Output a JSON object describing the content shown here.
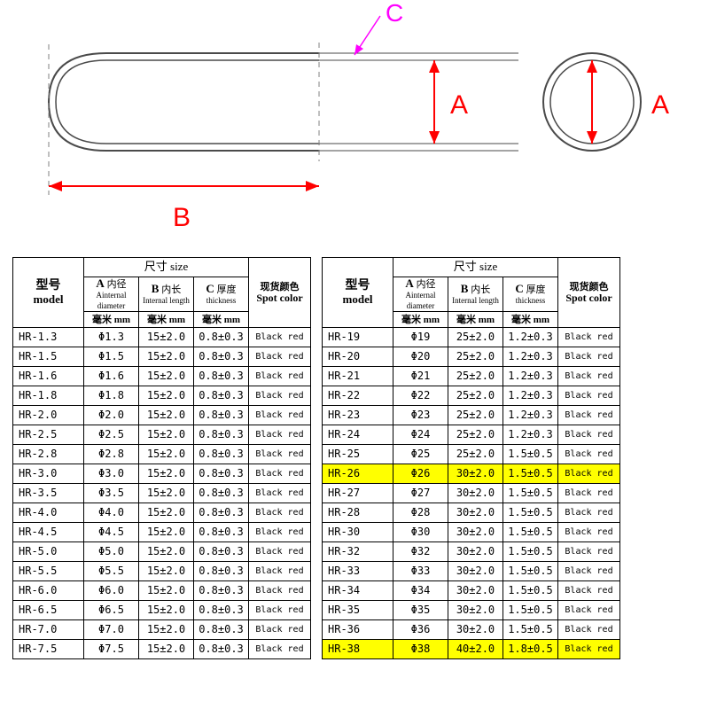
{
  "diagram": {
    "label_A": "A",
    "label_B": "B",
    "label_C": "C",
    "color_A": "#ff0000",
    "color_B": "#ff0000",
    "color_C": "#ff00ff",
    "stroke_outline": "#4a4a4a",
    "stroke_dash": "#808080"
  },
  "headers": {
    "size_cn": "尺寸",
    "size_en": "size",
    "model_cn": "型号",
    "model_en": "model",
    "A_cn": "内径",
    "A_en": "Ainternal diameter",
    "B_cn": "内长",
    "B_en": "Internal length",
    "C_cn": "厚度",
    "C_en": "thickness",
    "mm_cn": "毫米",
    "mm_en": "mm",
    "spot_cn": "现货颜色",
    "spot_en": "Spot color",
    "A_letter": "A",
    "B_letter": "B",
    "C_letter": "C"
  },
  "spot_value": "Black  red",
  "left_rows": [
    {
      "model": "HR-1.3",
      "a": "1.3",
      "b": "15±2.0",
      "c": "0.8±0.3"
    },
    {
      "model": "HR-1.5",
      "a": "1.5",
      "b": "15±2.0",
      "c": "0.8±0.3"
    },
    {
      "model": "HR-1.6",
      "a": "1.6",
      "b": "15±2.0",
      "c": "0.8±0.3"
    },
    {
      "model": "HR-1.8",
      "a": "1.8",
      "b": "15±2.0",
      "c": "0.8±0.3"
    },
    {
      "model": "HR-2.0",
      "a": "2.0",
      "b": "15±2.0",
      "c": "0.8±0.3"
    },
    {
      "model": "HR-2.5",
      "a": "2.5",
      "b": "15±2.0",
      "c": "0.8±0.3"
    },
    {
      "model": "HR-2.8",
      "a": "2.8",
      "b": "15±2.0",
      "c": "0.8±0.3"
    },
    {
      "model": "HR-3.0",
      "a": "3.0",
      "b": "15±2.0",
      "c": "0.8±0.3"
    },
    {
      "model": "HR-3.5",
      "a": "3.5",
      "b": "15±2.0",
      "c": "0.8±0.3"
    },
    {
      "model": "HR-4.0",
      "a": "4.0",
      "b": "15±2.0",
      "c": "0.8±0.3"
    },
    {
      "model": "HR-4.5",
      "a": "4.5",
      "b": "15±2.0",
      "c": "0.8±0.3"
    },
    {
      "model": "HR-5.0",
      "a": "5.0",
      "b": "15±2.0",
      "c": "0.8±0.3"
    },
    {
      "model": "HR-5.5",
      "a": "5.5",
      "b": "15±2.0",
      "c": "0.8±0.3"
    },
    {
      "model": "HR-6.0",
      "a": "6.0",
      "b": "15±2.0",
      "c": "0.8±0.3"
    },
    {
      "model": "HR-6.5",
      "a": "6.5",
      "b": "15±2.0",
      "c": "0.8±0.3"
    },
    {
      "model": "HR-7.0",
      "a": "7.0",
      "b": "15±2.0",
      "c": "0.8±0.3"
    },
    {
      "model": "HR-7.5",
      "a": "7.5",
      "b": "15±2.0",
      "c": "0.8±0.3"
    }
  ],
  "right_rows": [
    {
      "model": "HR-19",
      "a": "19",
      "b": "25±2.0",
      "c": "1.2±0.3"
    },
    {
      "model": "HR-20",
      "a": "20",
      "b": "25±2.0",
      "c": "1.2±0.3"
    },
    {
      "model": "HR-21",
      "a": "21",
      "b": "25±2.0",
      "c": "1.2±0.3"
    },
    {
      "model": "HR-22",
      "a": "22",
      "b": "25±2.0",
      "c": "1.2±0.3"
    },
    {
      "model": "HR-23",
      "a": "23",
      "b": "25±2.0",
      "c": "1.2±0.3"
    },
    {
      "model": "HR-24",
      "a": "24",
      "b": "25±2.0",
      "c": "1.2±0.3"
    },
    {
      "model": "HR-25",
      "a": "25",
      "b": "25±2.0",
      "c": "1.5±0.5"
    },
    {
      "model": "HR-26",
      "a": "26",
      "b": "30±2.0",
      "c": "1.5±0.5",
      "hl": true
    },
    {
      "model": "HR-27",
      "a": "27",
      "b": "30±2.0",
      "c": "1.5±0.5"
    },
    {
      "model": "HR-28",
      "a": "28",
      "b": "30±2.0",
      "c": "1.5±0.5"
    },
    {
      "model": "HR-30",
      "a": "30",
      "b": "30±2.0",
      "c": "1.5±0.5"
    },
    {
      "model": "HR-32",
      "a": "32",
      "b": "30±2.0",
      "c": "1.5±0.5"
    },
    {
      "model": "HR-33",
      "a": "33",
      "b": "30±2.0",
      "c": "1.5±0.5"
    },
    {
      "model": "HR-34",
      "a": "34",
      "b": "30±2.0",
      "c": "1.5±0.5"
    },
    {
      "model": "HR-35",
      "a": "35",
      "b": "30±2.0",
      "c": "1.5±0.5"
    },
    {
      "model": "HR-36",
      "a": "36",
      "b": "30±2.0",
      "c": "1.5±0.5"
    },
    {
      "model": "HR-38",
      "a": "38",
      "b": "40±2.0",
      "c": "1.8±0.5",
      "hl": true
    }
  ]
}
